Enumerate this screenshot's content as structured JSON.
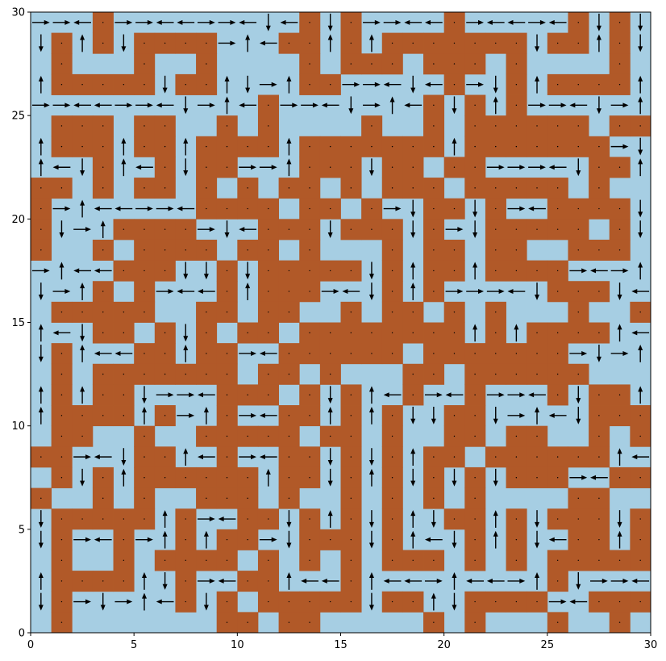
{
  "chart_data": {
    "type": "heatmap",
    "title": "",
    "xlabel": "",
    "ylabel": "",
    "xlim": [
      0,
      30
    ],
    "ylim": [
      0,
      30
    ],
    "grid": false,
    "x_ticks": [
      "0",
      "5",
      "10",
      "15",
      "20",
      "25",
      "30"
    ],
    "y_ticks": [
      "0",
      "5",
      "10",
      "15",
      "20",
      "25",
      "30"
    ],
    "colors": {
      "open": "#a6cee3",
      "wall": "#b15928",
      "arrow": "#000000"
    },
    "cell_legend": {
      ".": "open",
      "#": "wall"
    },
    "grid_rows_top_to_bottom": [
      "...#.........#.#....#.....#.#.",
      ".#.#.####...##.#.#######.##.#.",
      ".#...#..#....#.###.###.#....#.",
      ".#####.##....##.....#..#.####.",
      "...........#.......#.#.#......",
      ".###.##..#.#....#..#.######.##",
      ".###.##.####.#######.#######..",
      "...#..#.##...###.##.##.....##.",
      "##.#.##.#.#.##.#.###.#####.#..",
      "#.......####.##.#..##.#..####.",
      "#...####...###.###.#..#####.#.",
      "#..#.####.##.#...#.##.##..###.",
      "....###..#.#####.#.##.####....",
      "...#.#...#.###...#.#.....###..",
      ".#####..##.##..#.##.#.#...#..#",
      "...##.#.#.##.########.#.####..",
      ".#...##.##..######.#######....",
      ".#.#######.##.#...##.######...",
      ".#.##....###.#.#..#..#...#.##.",
      ".####.#..#..##.#.#..##.....###",
      ".##..#..#####.##.#..##.##..#.#",
      "##...##..#..##.#.#.##.######..",
      ".#.#.######.##.#.#.#.#.###..##",
      "#..#.#..###.#..#.#.#.#....##..",
      ".#####.#..##.#.#.#..##.#.###.#",
      ".#..#..#.##..###.#...#.#..##.#",
      ".#..#.####.#.#.#.###.#.#.#####",
      ".####..#..##...#.........#....",
      ".#.....#.#.#####.##..####..###",
      ".#.......##.##.....#.#...#..#."
    ]
  }
}
